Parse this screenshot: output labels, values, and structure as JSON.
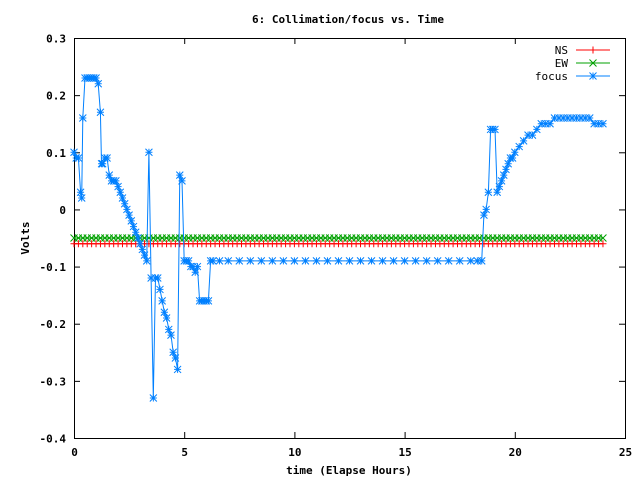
{
  "chart_data": {
    "type": "line",
    "title": "6: Collimation/focus vs. Time",
    "xlabel": "time (Elapse Hours)",
    "ylabel": "Volts",
    "xlim": [
      0,
      25
    ],
    "ylim": [
      -0.4,
      0.3
    ],
    "xticks": [
      "0",
      "5",
      "10",
      "15",
      "20",
      "25"
    ],
    "yticks": [
      "-0.4",
      "-0.3",
      "-0.2",
      "-0.1",
      "0",
      "0.1",
      "0.2",
      "0.3"
    ],
    "grid": false,
    "legend_position": "top-right",
    "series": [
      {
        "name": "NS",
        "color": "#ff0000",
        "marker": "plus",
        "x": [
          0,
          0.2,
          0.4,
          0.6,
          0.8,
          1,
          1.2,
          1.4,
          1.6,
          1.8,
          2,
          2.2,
          2.4,
          2.6,
          2.8,
          3,
          3.2,
          3.4,
          3.6,
          3.8,
          4,
          4.2,
          4.4,
          4.6,
          4.8,
          5,
          5.2,
          5.4,
          5.6,
          5.8,
          6,
          6.2,
          6.4,
          6.6,
          6.8,
          7,
          7.2,
          7.4,
          7.6,
          7.8,
          8,
          8.2,
          8.4,
          8.6,
          8.8,
          9,
          9.2,
          9.4,
          9.6,
          9.8,
          10,
          10.2,
          10.4,
          10.6,
          10.8,
          11,
          11.2,
          11.4,
          11.6,
          11.8,
          12,
          12.2,
          12.4,
          12.6,
          12.8,
          13,
          13.2,
          13.4,
          13.6,
          13.8,
          14,
          14.2,
          14.4,
          14.6,
          14.8,
          15,
          15.2,
          15.4,
          15.6,
          15.8,
          16,
          16.2,
          16.4,
          16.6,
          16.8,
          17,
          17.2,
          17.4,
          17.6,
          17.8,
          18,
          18.2,
          18.4,
          18.6,
          18.8,
          19,
          19.2,
          19.4,
          19.6,
          19.8,
          20,
          20.2,
          20.4,
          20.6,
          20.8,
          21,
          21.2,
          21.4,
          21.6,
          21.8,
          22,
          22.2,
          22.4,
          22.6,
          22.8,
          23,
          23.2,
          23.4,
          23.6,
          23.8,
          24
        ],
        "y": [
          -0.06,
          -0.06,
          -0.06,
          -0.06,
          -0.06,
          -0.06,
          -0.06,
          -0.06,
          -0.06,
          -0.06,
          -0.06,
          -0.06,
          -0.06,
          -0.06,
          -0.06,
          -0.06,
          -0.06,
          -0.06,
          -0.06,
          -0.06,
          -0.06,
          -0.06,
          -0.06,
          -0.06,
          -0.06,
          -0.06,
          -0.06,
          -0.06,
          -0.06,
          -0.06,
          -0.06,
          -0.06,
          -0.06,
          -0.06,
          -0.06,
          -0.06,
          -0.06,
          -0.06,
          -0.06,
          -0.06,
          -0.06,
          -0.06,
          -0.06,
          -0.06,
          -0.06,
          -0.06,
          -0.06,
          -0.06,
          -0.06,
          -0.06,
          -0.06,
          -0.06,
          -0.06,
          -0.06,
          -0.06,
          -0.06,
          -0.06,
          -0.06,
          -0.06,
          -0.06,
          -0.06,
          -0.06,
          -0.06,
          -0.06,
          -0.06,
          -0.06,
          -0.06,
          -0.06,
          -0.06,
          -0.06,
          -0.06,
          -0.06,
          -0.06,
          -0.06,
          -0.06,
          -0.06,
          -0.06,
          -0.06,
          -0.06,
          -0.06,
          -0.06,
          -0.06,
          -0.06,
          -0.06,
          -0.06,
          -0.06,
          -0.06,
          -0.06,
          -0.06,
          -0.06,
          -0.06,
          -0.06,
          -0.06,
          -0.06,
          -0.06,
          -0.06,
          -0.06,
          -0.06,
          -0.06,
          -0.06,
          -0.06,
          -0.06,
          -0.06,
          -0.06,
          -0.06,
          -0.06,
          -0.06,
          -0.06,
          -0.06,
          -0.06,
          -0.06,
          -0.06,
          -0.06,
          -0.06,
          -0.06,
          -0.06,
          -0.06,
          -0.06,
          -0.06,
          -0.06,
          -0.06
        ]
      },
      {
        "name": "EW",
        "color": "#00a000",
        "marker": "cross",
        "x": [
          0,
          0.2,
          0.4,
          0.6,
          0.8,
          1,
          1.2,
          1.4,
          1.6,
          1.8,
          2,
          2.2,
          2.4,
          2.6,
          2.8,
          3,
          3.2,
          3.4,
          3.6,
          3.8,
          4,
          4.2,
          4.4,
          4.6,
          4.8,
          5,
          5.2,
          5.4,
          5.6,
          5.8,
          6,
          6.2,
          6.4,
          6.6,
          6.8,
          7,
          7.2,
          7.4,
          7.6,
          7.8,
          8,
          8.2,
          8.4,
          8.6,
          8.8,
          9,
          9.2,
          9.4,
          9.6,
          9.8,
          10,
          10.2,
          10.4,
          10.6,
          10.8,
          11,
          11.2,
          11.4,
          11.6,
          11.8,
          12,
          12.2,
          12.4,
          12.6,
          12.8,
          13,
          13.2,
          13.4,
          13.6,
          13.8,
          14,
          14.2,
          14.4,
          14.6,
          14.8,
          15,
          15.2,
          15.4,
          15.6,
          15.8,
          16,
          16.2,
          16.4,
          16.6,
          16.8,
          17,
          17.2,
          17.4,
          17.6,
          17.8,
          18,
          18.2,
          18.4,
          18.6,
          18.8,
          19,
          19.2,
          19.4,
          19.6,
          19.8,
          20,
          20.2,
          20.4,
          20.6,
          20.8,
          21,
          21.2,
          21.4,
          21.6,
          21.8,
          22,
          22.2,
          22.4,
          22.6,
          22.8,
          23,
          23.2,
          23.4,
          23.6,
          23.8,
          24
        ],
        "y": [
          -0.05,
          -0.05,
          -0.05,
          -0.05,
          -0.05,
          -0.05,
          -0.05,
          -0.05,
          -0.05,
          -0.05,
          -0.05,
          -0.05,
          -0.05,
          -0.05,
          -0.05,
          -0.05,
          -0.05,
          -0.05,
          -0.05,
          -0.05,
          -0.05,
          -0.05,
          -0.05,
          -0.05,
          -0.05,
          -0.05,
          -0.05,
          -0.05,
          -0.05,
          -0.05,
          -0.05,
          -0.05,
          -0.05,
          -0.05,
          -0.05,
          -0.05,
          -0.05,
          -0.05,
          -0.05,
          -0.05,
          -0.05,
          -0.05,
          -0.05,
          -0.05,
          -0.05,
          -0.05,
          -0.05,
          -0.05,
          -0.05,
          -0.05,
          -0.05,
          -0.05,
          -0.05,
          -0.05,
          -0.05,
          -0.05,
          -0.05,
          -0.05,
          -0.05,
          -0.05,
          -0.05,
          -0.05,
          -0.05,
          -0.05,
          -0.05,
          -0.05,
          -0.05,
          -0.05,
          -0.05,
          -0.05,
          -0.05,
          -0.05,
          -0.05,
          -0.05,
          -0.05,
          -0.05,
          -0.05,
          -0.05,
          -0.05,
          -0.05,
          -0.05,
          -0.05,
          -0.05,
          -0.05,
          -0.05,
          -0.05,
          -0.05,
          -0.05,
          -0.05,
          -0.05,
          -0.05,
          -0.05,
          -0.05,
          -0.05,
          -0.05,
          -0.05,
          -0.05,
          -0.05,
          -0.05,
          -0.05,
          -0.05,
          -0.05,
          -0.05,
          -0.05,
          -0.05,
          -0.05,
          -0.05,
          -0.05,
          -0.05,
          -0.05,
          -0.05,
          -0.05,
          -0.05,
          -0.05,
          -0.05,
          -0.05,
          -0.05,
          -0.05,
          -0.05,
          -0.05,
          -0.05
        ]
      },
      {
        "name": "focus",
        "color": "#0080ff",
        "marker": "star",
        "x": [
          0,
          0.1,
          0.2,
          0.3,
          0.35,
          0.4,
          0.5,
          0.6,
          0.7,
          0.8,
          0.9,
          1.0,
          1.1,
          1.2,
          1.25,
          1.3,
          1.4,
          1.5,
          1.6,
          1.7,
          1.8,
          1.9,
          2.0,
          2.1,
          2.2,
          2.3,
          2.4,
          2.5,
          2.6,
          2.7,
          2.8,
          2.9,
          3.0,
          3.1,
          3.2,
          3.3,
          3.4,
          3.5,
          3.6,
          3.7,
          3.8,
          3.9,
          4.0,
          4.1,
          4.2,
          4.3,
          4.4,
          4.5,
          4.6,
          4.7,
          4.8,
          4.9,
          5.0,
          5.1,
          5.2,
          5.3,
          5.4,
          5.5,
          5.6,
          5.7,
          5.8,
          5.9,
          6.0,
          6.1,
          6.2,
          6.3,
          6.6,
          7.0,
          7.5,
          8.0,
          8.5,
          9.0,
          9.5,
          10.0,
          10.5,
          11.0,
          11.5,
          12.0,
          12.5,
          13.0,
          13.5,
          14.0,
          14.5,
          15.0,
          15.5,
          16.0,
          16.5,
          17.0,
          17.5,
          18.0,
          18.3,
          18.5,
          18.6,
          18.7,
          18.8,
          18.9,
          19.0,
          19.1,
          19.2,
          19.3,
          19.4,
          19.5,
          19.6,
          19.7,
          19.8,
          19.9,
          20.0,
          20.2,
          20.4,
          20.6,
          20.8,
          21.0,
          21.2,
          21.4,
          21.6,
          21.8,
          22.0,
          22.2,
          22.4,
          22.6,
          22.8,
          23.0,
          23.2,
          23.4,
          23.6,
          23.8,
          24.0
        ],
        "y": [
          0.1,
          0.09,
          0.09,
          0.03,
          0.02,
          0.16,
          0.23,
          0.23,
          0.23,
          0.23,
          0.23,
          0.23,
          0.22,
          0.17,
          0.08,
          0.08,
          0.09,
          0.09,
          0.06,
          0.05,
          0.05,
          0.05,
          0.04,
          0.03,
          0.02,
          0.01,
          0.0,
          -0.01,
          -0.02,
          -0.03,
          -0.04,
          -0.05,
          -0.06,
          -0.07,
          -0.08,
          -0.09,
          0.1,
          -0.12,
          -0.33,
          -0.12,
          -0.12,
          -0.14,
          -0.16,
          -0.18,
          -0.19,
          -0.21,
          -0.22,
          -0.25,
          -0.26,
          -0.28,
          0.06,
          0.05,
          -0.09,
          -0.09,
          -0.09,
          -0.1,
          -0.1,
          -0.11,
          -0.1,
          -0.16,
          -0.16,
          -0.16,
          -0.16,
          -0.16,
          -0.09,
          -0.09,
          -0.09,
          -0.09,
          -0.09,
          -0.09,
          -0.09,
          -0.09,
          -0.09,
          -0.09,
          -0.09,
          -0.09,
          -0.09,
          -0.09,
          -0.09,
          -0.09,
          -0.09,
          -0.09,
          -0.09,
          -0.09,
          -0.09,
          -0.09,
          -0.09,
          -0.09,
          -0.09,
          -0.09,
          -0.09,
          -0.09,
          -0.01,
          0.0,
          0.03,
          0.14,
          0.14,
          0.14,
          0.03,
          0.04,
          0.05,
          0.06,
          0.07,
          0.08,
          0.09,
          0.09,
          0.1,
          0.11,
          0.12,
          0.13,
          0.13,
          0.14,
          0.15,
          0.15,
          0.15,
          0.16,
          0.16,
          0.16,
          0.16,
          0.16,
          0.16,
          0.16,
          0.16,
          0.16,
          0.15,
          0.15,
          0.15
        ]
      }
    ]
  }
}
